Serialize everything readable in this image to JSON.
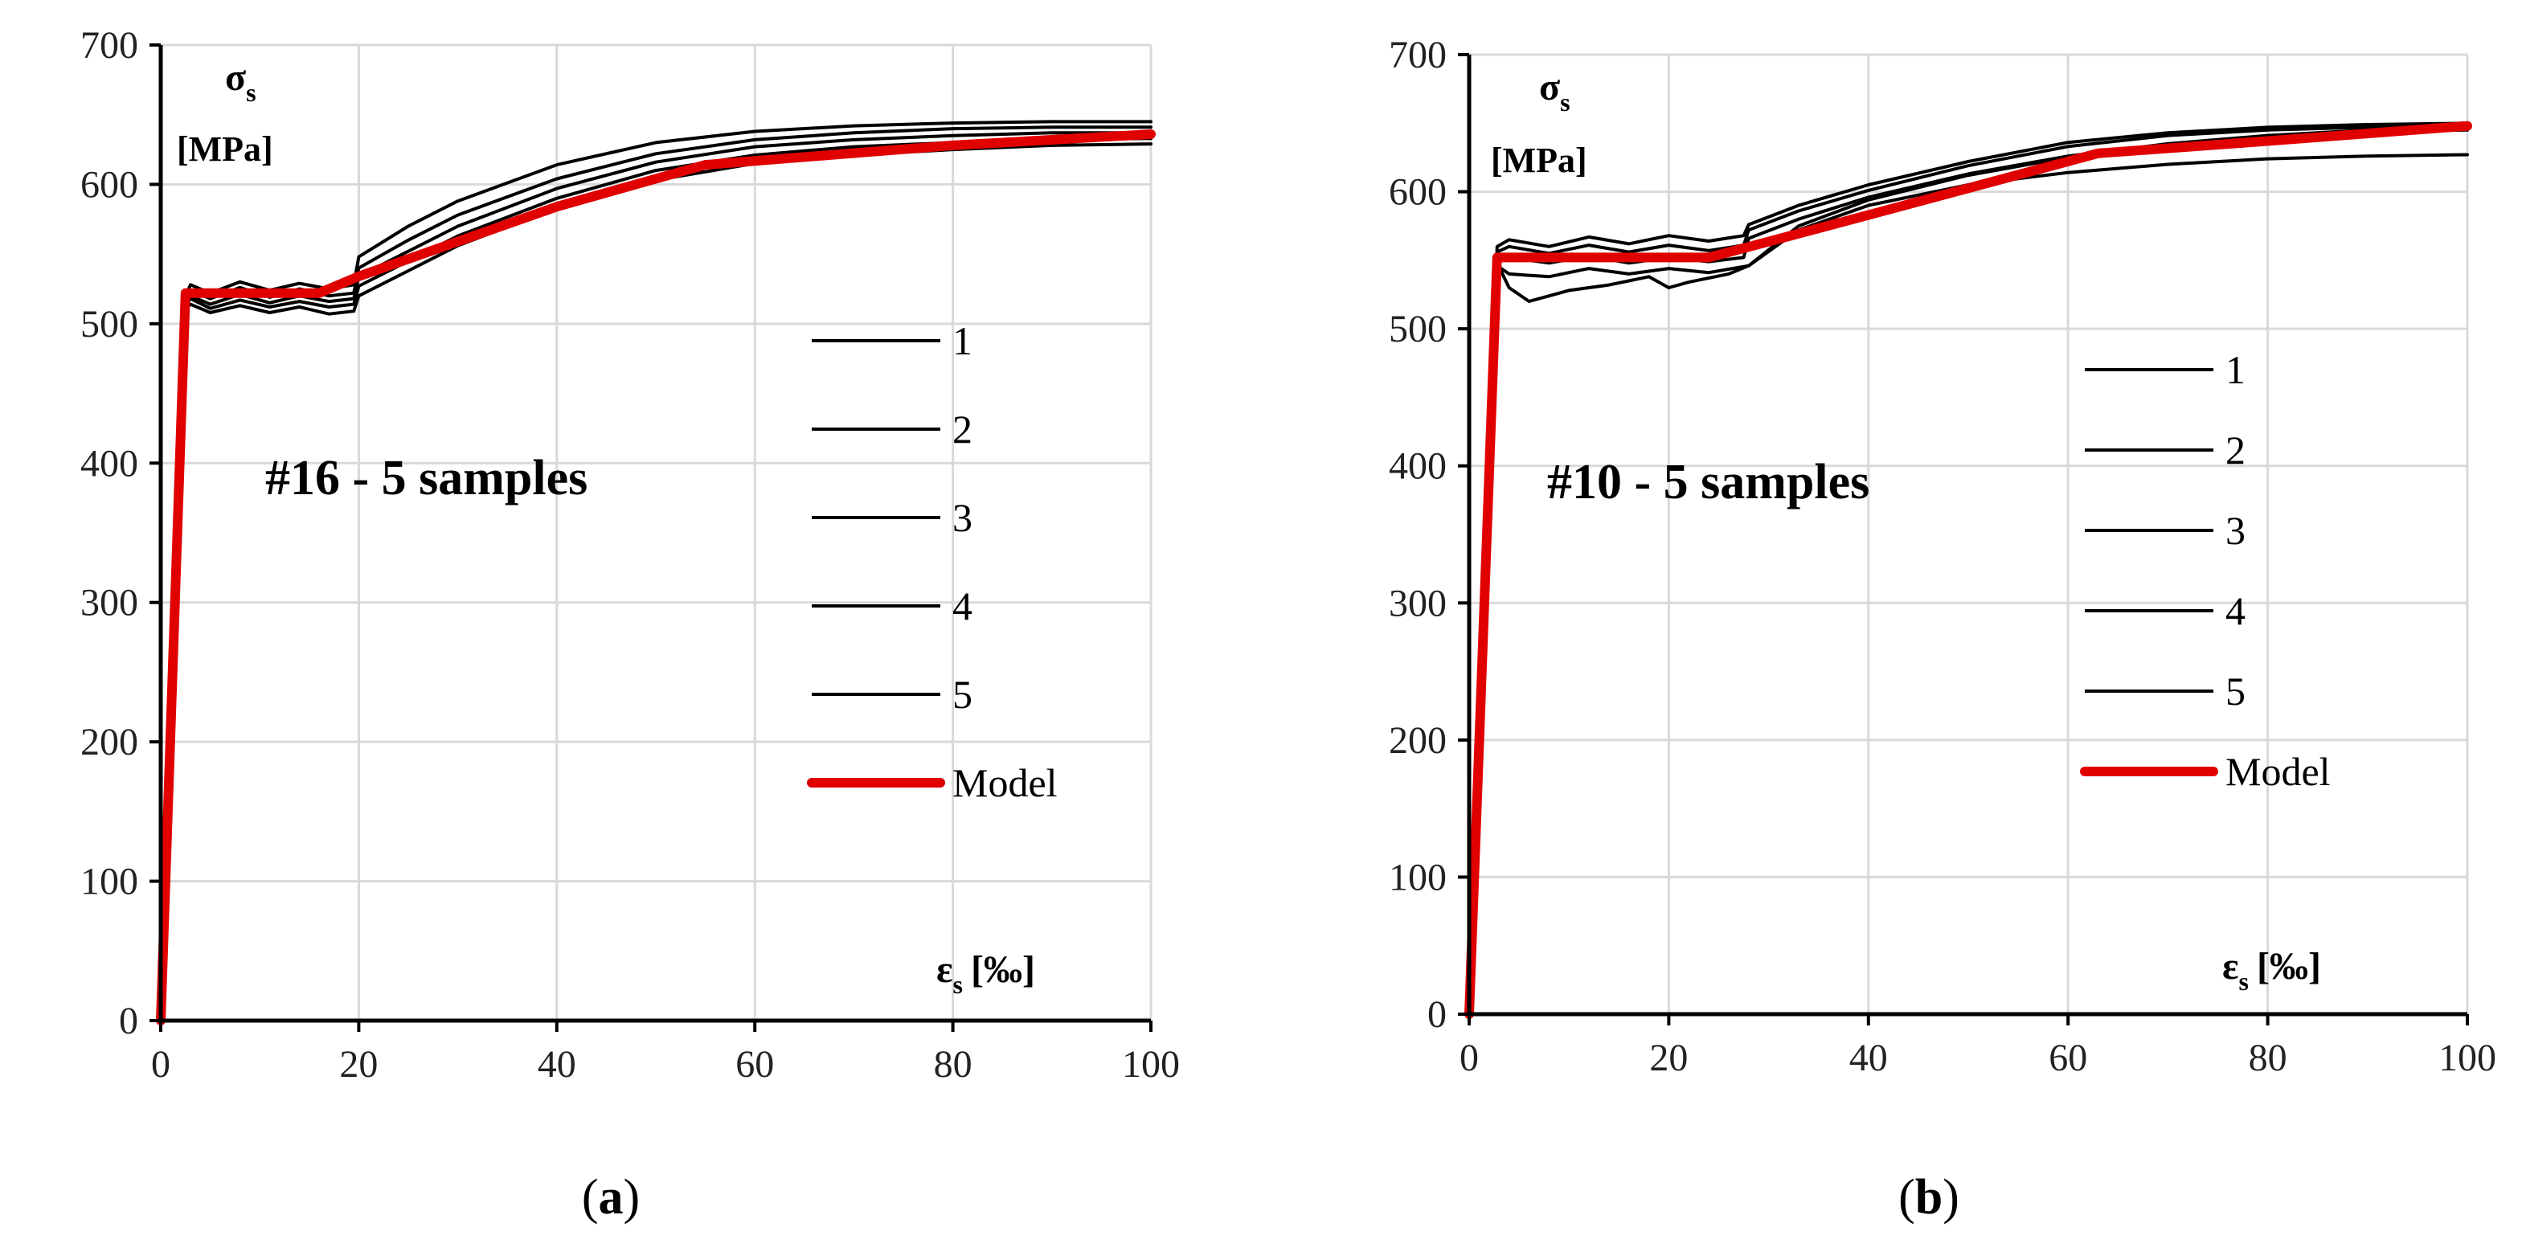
{
  "chart_data": [
    {
      "type": "line",
      "panel_label": "a",
      "caption_open": "(",
      "caption_close": ")",
      "annotation": "#16 - 5 samples",
      "ylabel_symbol": "σ",
      "ylabel_sub": "s",
      "ylabel_unit": "[MPa]",
      "xlabel_symbol": "ε",
      "xlabel_sub": "s",
      "xlabel_unit": "[‰]",
      "xlim": [
        0,
        100
      ],
      "ylim": [
        0,
        700
      ],
      "xticks": [
        "0",
        "20",
        "40",
        "60",
        "80",
        "100"
      ],
      "yticks": [
        "0",
        "100",
        "200",
        "300",
        "400",
        "500",
        "600",
        "700"
      ],
      "grid": true,
      "legend_position": "center-right",
      "series": [
        {
          "name": "1",
          "color": "#000000",
          "x": [
            0,
            2.4,
            3,
            5,
            8,
            11,
            14,
            17,
            19.5,
            20,
            25,
            30,
            40,
            50,
            60,
            70,
            80,
            90,
            100
          ],
          "y": [
            0,
            518,
            528,
            522,
            530,
            524,
            529,
            525,
            528,
            548,
            570,
            588,
            614,
            630,
            638,
            642,
            644,
            645,
            645
          ]
        },
        {
          "name": "2",
          "color": "#000000",
          "x": [
            0,
            2.4,
            3,
            5,
            8,
            11,
            14,
            17,
            19.5,
            20,
            25,
            30,
            40,
            50,
            60,
            70,
            80,
            90,
            100
          ],
          "y": [
            0,
            516,
            524,
            518,
            526,
            519,
            525,
            520,
            522,
            540,
            560,
            578,
            604,
            622,
            632,
            637,
            640,
            641,
            641
          ]
        },
        {
          "name": "3",
          "color": "#000000",
          "x": [
            0,
            2.4,
            3,
            5,
            8,
            11,
            14,
            17,
            19.5,
            20,
            25,
            30,
            40,
            50,
            60,
            70,
            80,
            90,
            100
          ],
          "y": [
            0,
            514,
            520,
            514,
            521,
            515,
            520,
            516,
            518,
            534,
            552,
            570,
            597,
            616,
            627,
            632,
            635,
            637,
            637
          ]
        },
        {
          "name": "4",
          "color": "#000000",
          "x": [
            0,
            2.4,
            3,
            5,
            8,
            11,
            14,
            17,
            19.5,
            20,
            25,
            30,
            40,
            50,
            60,
            70,
            80,
            90,
            100
          ],
          "y": [
            0,
            512,
            518,
            511,
            517,
            512,
            516,
            512,
            514,
            527,
            545,
            563,
            590,
            610,
            621,
            627,
            630,
            632,
            633
          ]
        },
        {
          "name": "5",
          "color": "#000000",
          "x": [
            0,
            2.4,
            3,
            5,
            8,
            11,
            14,
            17,
            19.5,
            20,
            25,
            30,
            40,
            50,
            60,
            70,
            80,
            90,
            100
          ],
          "y": [
            0,
            510,
            514,
            508,
            513,
            508,
            512,
            507,
            509,
            520,
            538,
            556,
            583,
            603,
            615,
            621,
            625,
            628,
            629
          ]
        },
        {
          "name": "Model",
          "color": "#e00000",
          "x": [
            0,
            2.5,
            16,
            20,
            40,
            55,
            80,
            100
          ],
          "y": [
            0,
            522,
            522,
            534,
            584,
            614,
            628,
            636
          ]
        }
      ]
    },
    {
      "type": "line",
      "panel_label": "b",
      "caption_open": "(",
      "caption_close": ")",
      "annotation": "#10 - 5 samples",
      "ylabel_symbol": "σ",
      "ylabel_sub": "s",
      "ylabel_unit": "[MPa]",
      "xlabel_symbol": "ε",
      "xlabel_sub": "s",
      "xlabel_unit": "[‰]",
      "xlim": [
        0,
        100
      ],
      "ylim": [
        0,
        700
      ],
      "xticks": [
        "0",
        "20",
        "40",
        "60",
        "80",
        "100"
      ],
      "yticks": [
        "0",
        "100",
        "200",
        "300",
        "400",
        "500",
        "600",
        "700"
      ],
      "grid": true,
      "legend_position": "center-right",
      "series": [
        {
          "name": "1",
          "color": "#000000",
          "x": [
            0,
            2.8,
            4,
            8,
            12,
            16,
            20,
            24,
            27.5,
            28,
            33,
            40,
            50,
            60,
            70,
            80,
            90,
            100
          ],
          "y": [
            0,
            560,
            565,
            560,
            567,
            562,
            568,
            564,
            568,
            576,
            590,
            605,
            622,
            636,
            643,
            647,
            649,
            650
          ]
        },
        {
          "name": "2",
          "color": "#000000",
          "x": [
            0,
            2.8,
            4,
            8,
            12,
            16,
            20,
            24,
            27.5,
            28,
            33,
            40,
            50,
            60,
            70,
            80,
            90,
            100
          ],
          "y": [
            0,
            556,
            560,
            555,
            561,
            556,
            561,
            557,
            561,
            572,
            586,
            601,
            619,
            633,
            641,
            645,
            647,
            648
          ]
        },
        {
          "name": "3",
          "color": "#000000",
          "x": [
            0,
            2.8,
            4,
            8,
            12,
            16,
            20,
            24,
            27.5,
            28,
            33,
            40,
            50,
            60,
            70,
            80,
            90,
            100
          ],
          "y": [
            0,
            552,
            552,
            548,
            553,
            548,
            552,
            549,
            552,
            566,
            580,
            596,
            613,
            626,
            635,
            641,
            645,
            646
          ]
        },
        {
          "name": "4",
          "color": "#000000",
          "x": [
            0,
            2.8,
            4,
            6,
            10,
            14,
            18,
            20,
            22,
            26,
            28,
            33,
            40,
            50,
            60,
            70,
            80,
            90,
            100
          ],
          "y": [
            0,
            548,
            530,
            520,
            528,
            532,
            538,
            530,
            534,
            540,
            546,
            575,
            594,
            612,
            625,
            634,
            640,
            644,
            645
          ]
        },
        {
          "name": "5",
          "color": "#000000",
          "x": [
            0,
            2.8,
            4,
            8,
            12,
            16,
            20,
            24,
            28,
            33,
            40,
            50,
            60,
            70,
            80,
            90,
            100
          ],
          "y": [
            0,
            546,
            540,
            538,
            544,
            540,
            544,
            541,
            546,
            572,
            590,
            605,
            614,
            620,
            624,
            626,
            627
          ]
        },
        {
          "name": "Model",
          "color": "#e00000",
          "x": [
            0,
            2.8,
            24,
            40,
            63,
            80,
            100
          ],
          "y": [
            0,
            552,
            552,
            583,
            628,
            637,
            648
          ]
        }
      ]
    }
  ]
}
